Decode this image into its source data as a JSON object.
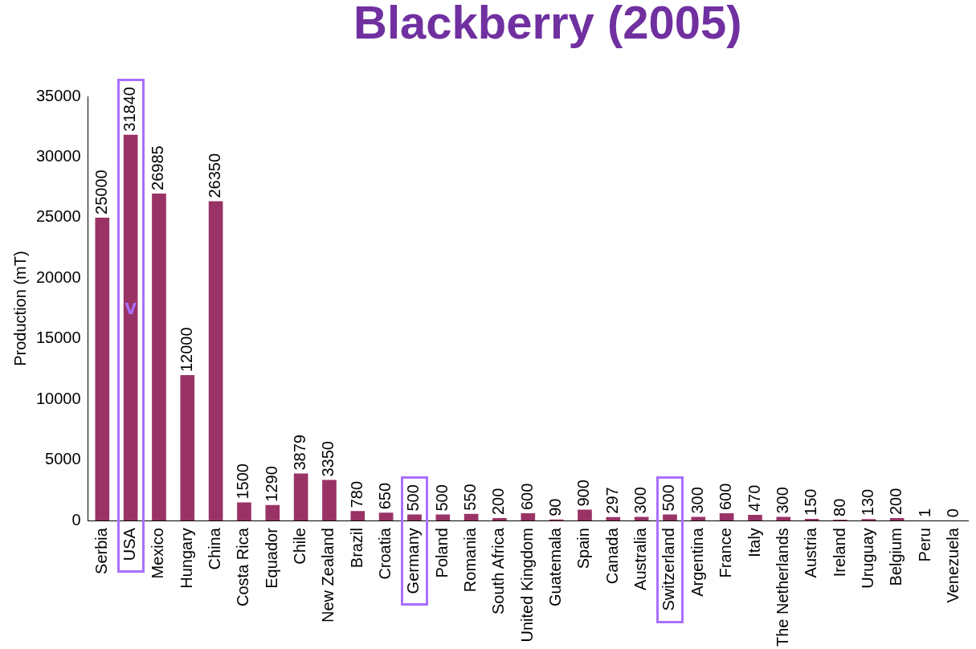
{
  "chart_data": {
    "type": "bar",
    "title": "Blackberry (2005)",
    "ylabel": "Production (mT)",
    "categories": [
      "Serbia",
      "USA",
      "Mexico",
      "Hungary",
      "China",
      "Costa Rica",
      "Equador",
      "Chile",
      "New Zealand",
      "Brazil",
      "Croatia",
      "Germany",
      "Poland",
      "Romania",
      "South Africa",
      "United Kingdom",
      "Guatemala",
      "Spain",
      "Canada",
      "Australia",
      "Switzerland",
      "Argentina",
      "France",
      "Italy",
      "The Netherlands",
      "Austria",
      "Ireland",
      "Uruguay",
      "Belgium",
      "Peru",
      "Venezuela"
    ],
    "values": [
      25000,
      31840,
      26985,
      12000,
      26350,
      1500,
      1290,
      3879,
      3350,
      780,
      650,
      500,
      500,
      550,
      200,
      600,
      90,
      900,
      297,
      300,
      500,
      300,
      600,
      470,
      300,
      150,
      80,
      130,
      200,
      1,
      0
    ],
    "color": "#993366",
    "ylim": [
      0,
      35000
    ],
    "yticks": [
      0,
      5000,
      10000,
      15000,
      20000,
      25000,
      30000,
      35000
    ],
    "grid": false,
    "legend": false,
    "data_labels": true,
    "annotations": [
      "v"
    ]
  }
}
